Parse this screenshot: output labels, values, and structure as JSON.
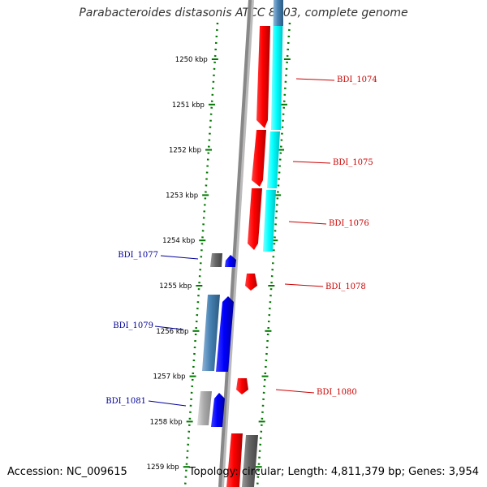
{
  "title": "Parabacteroides distasonis ATCC 8503, complete genome",
  "accession": "Accession: NC_009615",
  "stats": "Topology: circular; Length: 4,811,379 bp; Genes: 3,954",
  "colors": {
    "forward_gene": "#ff0000",
    "forward_cds": "#00ffff",
    "reverse_gene": "#0000ff",
    "reverse_cds": "#4682b4",
    "pseudo_gray": "#666666",
    "light_gray": "#aaaaaa",
    "tick": "#007700",
    "backbone": "#888888",
    "label_red": "#cc0000",
    "label_blue": "#000099"
  },
  "ticks": [
    {
      "kbp": 1250,
      "label": "1250 kbp"
    },
    {
      "kbp": 1251,
      "label": "1251 kbp"
    },
    {
      "kbp": 1252,
      "label": "1252 kbp"
    },
    {
      "kbp": 1253,
      "label": "1253 kbp"
    },
    {
      "kbp": 1254,
      "label": "1254 kbp"
    },
    {
      "kbp": 1255,
      "label": "1255 kbp"
    },
    {
      "kbp": 1256,
      "label": "1256 kbp"
    },
    {
      "kbp": 1257,
      "label": "1257 kbp"
    },
    {
      "kbp": 1258,
      "label": "1258 kbp"
    },
    {
      "kbp": 1259,
      "label": "1259 kbp"
    }
  ],
  "genes": [
    {
      "name": "BDI_1074",
      "strand": "+"
    },
    {
      "name": "BDI_1075",
      "strand": "+"
    },
    {
      "name": "BDI_1076",
      "strand": "+"
    },
    {
      "name": "BDI_1077",
      "strand": "-"
    },
    {
      "name": "BDI_1078",
      "strand": "+"
    },
    {
      "name": "BDI_1079",
      "strand": "-"
    },
    {
      "name": "BDI_1080",
      "strand": "+"
    },
    {
      "name": "BDI_1081",
      "strand": "-"
    }
  ]
}
